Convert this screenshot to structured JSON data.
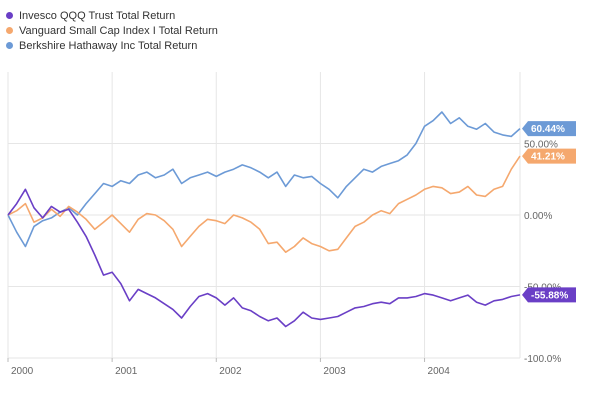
{
  "chart_data": {
    "type": "line",
    "title": "",
    "xlabel": "",
    "ylabel": "",
    "x_start": "2000-01",
    "x_end": "2004-12",
    "ylim": [
      -100,
      100
    ],
    "y_ticks": [
      {
        "value": 50,
        "label": "50.00%"
      },
      {
        "value": 0,
        "label": "0.00%"
      },
      {
        "value": -50,
        "label": "-50.00%"
      },
      {
        "value": -100,
        "label": "-100.0%"
      }
    ],
    "x_ticks": [
      {
        "date": "2000-01",
        "label": "2000"
      },
      {
        "date": "2001-01",
        "label": "2001"
      },
      {
        "date": "2002-01",
        "label": "2002"
      },
      {
        "date": "2003-01",
        "label": "2003"
      },
      {
        "date": "2004-01",
        "label": "2004"
      }
    ],
    "grid": true,
    "legend_position": "top-left",
    "series": [
      {
        "name": "Invesco QQQ Trust Total Return",
        "color": "#6a3fc6",
        "end_label": "-55.88%",
        "points": [
          [
            "2000-01",
            0
          ],
          [
            "2000-02",
            8
          ],
          [
            "2000-03",
            18
          ],
          [
            "2000-04",
            5
          ],
          [
            "2000-05",
            -2
          ],
          [
            "2000-06",
            6
          ],
          [
            "2000-07",
            2
          ],
          [
            "2000-08",
            4
          ],
          [
            "2000-09",
            -5
          ],
          [
            "2000-10",
            -15
          ],
          [
            "2000-11",
            -28
          ],
          [
            "2000-12",
            -42
          ],
          [
            "2001-01",
            -40
          ],
          [
            "2001-02",
            -48
          ],
          [
            "2001-03",
            -60
          ],
          [
            "2001-04",
            -52
          ],
          [
            "2001-05",
            -55
          ],
          [
            "2001-06",
            -58
          ],
          [
            "2001-07",
            -62
          ],
          [
            "2001-08",
            -66
          ],
          [
            "2001-09",
            -72
          ],
          [
            "2001-10",
            -64
          ],
          [
            "2001-11",
            -57
          ],
          [
            "2001-12",
            -55
          ],
          [
            "2002-01",
            -58
          ],
          [
            "2002-02",
            -63
          ],
          [
            "2002-03",
            -58
          ],
          [
            "2002-04",
            -65
          ],
          [
            "2002-05",
            -67
          ],
          [
            "2002-06",
            -71
          ],
          [
            "2002-07",
            -74
          ],
          [
            "2002-08",
            -72
          ],
          [
            "2002-09",
            -78
          ],
          [
            "2002-10",
            -74
          ],
          [
            "2002-11",
            -68
          ],
          [
            "2002-12",
            -72
          ],
          [
            "2003-01",
            -73
          ],
          [
            "2003-02",
            -72
          ],
          [
            "2003-03",
            -71
          ],
          [
            "2003-04",
            -68
          ],
          [
            "2003-05",
            -65
          ],
          [
            "2003-06",
            -64
          ],
          [
            "2003-07",
            -62
          ],
          [
            "2003-08",
            -61
          ],
          [
            "2003-09",
            -62
          ],
          [
            "2003-10",
            -58
          ],
          [
            "2003-11",
            -58
          ],
          [
            "2003-12",
            -57
          ],
          [
            "2004-01",
            -55
          ],
          [
            "2004-02",
            -56
          ],
          [
            "2004-03",
            -58
          ],
          [
            "2004-04",
            -60
          ],
          [
            "2004-05",
            -58
          ],
          [
            "2004-06",
            -56
          ],
          [
            "2004-07",
            -61
          ],
          [
            "2004-08",
            -63
          ],
          [
            "2004-09",
            -60
          ],
          [
            "2004-10",
            -59
          ],
          [
            "2004-11",
            -57
          ],
          [
            "2004-12",
            -55.88
          ]
        ]
      },
      {
        "name": "Vanguard Small Cap Index I Total Return",
        "color": "#f5a86e",
        "end_label": "41.21%",
        "points": [
          [
            "2000-01",
            0
          ],
          [
            "2000-02",
            3
          ],
          [
            "2000-03",
            8
          ],
          [
            "2000-04",
            -5
          ],
          [
            "2000-05",
            -2
          ],
          [
            "2000-06",
            4
          ],
          [
            "2000-07",
            -1
          ],
          [
            "2000-08",
            6
          ],
          [
            "2000-09",
            2
          ],
          [
            "2000-10",
            -3
          ],
          [
            "2000-11",
            -10
          ],
          [
            "2000-12",
            -5
          ],
          [
            "2001-01",
            0
          ],
          [
            "2001-02",
            -6
          ],
          [
            "2001-03",
            -12
          ],
          [
            "2001-04",
            -3
          ],
          [
            "2001-05",
            1
          ],
          [
            "2001-06",
            0
          ],
          [
            "2001-07",
            -4
          ],
          [
            "2001-08",
            -10
          ],
          [
            "2001-09",
            -22
          ],
          [
            "2001-10",
            -15
          ],
          [
            "2001-11",
            -8
          ],
          [
            "2001-12",
            -3
          ],
          [
            "2002-01",
            -4
          ],
          [
            "2002-02",
            -6
          ],
          [
            "2002-03",
            0
          ],
          [
            "2002-04",
            -2
          ],
          [
            "2002-05",
            -5
          ],
          [
            "2002-06",
            -10
          ],
          [
            "2002-07",
            -20
          ],
          [
            "2002-08",
            -19
          ],
          [
            "2002-09",
            -26
          ],
          [
            "2002-10",
            -22
          ],
          [
            "2002-11",
            -16
          ],
          [
            "2002-12",
            -20
          ],
          [
            "2003-01",
            -22
          ],
          [
            "2003-02",
            -25
          ],
          [
            "2003-03",
            -24
          ],
          [
            "2003-04",
            -16
          ],
          [
            "2003-05",
            -8
          ],
          [
            "2003-06",
            -5
          ],
          [
            "2003-07",
            0
          ],
          [
            "2003-08",
            3
          ],
          [
            "2003-09",
            1
          ],
          [
            "2003-10",
            8
          ],
          [
            "2003-11",
            11
          ],
          [
            "2003-12",
            14
          ],
          [
            "2004-01",
            18
          ],
          [
            "2004-02",
            20
          ],
          [
            "2004-03",
            19
          ],
          [
            "2004-04",
            15
          ],
          [
            "2004-05",
            16
          ],
          [
            "2004-06",
            20
          ],
          [
            "2004-07",
            14
          ],
          [
            "2004-08",
            13
          ],
          [
            "2004-09",
            18
          ],
          [
            "2004-10",
            20
          ],
          [
            "2004-11",
            32
          ],
          [
            "2004-12",
            41.21
          ]
        ]
      },
      {
        "name": "Berkshire Hathaway Inc Total Return",
        "color": "#6c9ad6",
        "end_label": "60.44%",
        "points": [
          [
            "2000-01",
            0
          ],
          [
            "2000-02",
            -12
          ],
          [
            "2000-03",
            -22
          ],
          [
            "2000-04",
            -8
          ],
          [
            "2000-05",
            -4
          ],
          [
            "2000-06",
            -2
          ],
          [
            "2000-07",
            2
          ],
          [
            "2000-08",
            5
          ],
          [
            "2000-09",
            0
          ],
          [
            "2000-10",
            8
          ],
          [
            "2000-11",
            15
          ],
          [
            "2000-12",
            22
          ],
          [
            "2001-01",
            20
          ],
          [
            "2001-02",
            24
          ],
          [
            "2001-03",
            22
          ],
          [
            "2001-04",
            28
          ],
          [
            "2001-05",
            30
          ],
          [
            "2001-06",
            26
          ],
          [
            "2001-07",
            28
          ],
          [
            "2001-08",
            32
          ],
          [
            "2001-09",
            22
          ],
          [
            "2001-10",
            26
          ],
          [
            "2001-11",
            28
          ],
          [
            "2001-12",
            30
          ],
          [
            "2002-01",
            27
          ],
          [
            "2002-02",
            30
          ],
          [
            "2002-03",
            32
          ],
          [
            "2002-04",
            35
          ],
          [
            "2002-05",
            33
          ],
          [
            "2002-06",
            30
          ],
          [
            "2002-07",
            26
          ],
          [
            "2002-08",
            30
          ],
          [
            "2002-09",
            20
          ],
          [
            "2002-10",
            28
          ],
          [
            "2002-11",
            26
          ],
          [
            "2002-12",
            27
          ],
          [
            "2003-01",
            22
          ],
          [
            "2003-02",
            18
          ],
          [
            "2003-03",
            12
          ],
          [
            "2003-04",
            20
          ],
          [
            "2003-05",
            26
          ],
          [
            "2003-06",
            32
          ],
          [
            "2003-07",
            30
          ],
          [
            "2003-08",
            34
          ],
          [
            "2003-09",
            36
          ],
          [
            "2003-10",
            38
          ],
          [
            "2003-11",
            42
          ],
          [
            "2003-12",
            50
          ],
          [
            "2004-01",
            62
          ],
          [
            "2004-02",
            66
          ],
          [
            "2004-03",
            72
          ],
          [
            "2004-04",
            64
          ],
          [
            "2004-05",
            68
          ],
          [
            "2004-06",
            62
          ],
          [
            "2004-07",
            60
          ],
          [
            "2004-08",
            64
          ],
          [
            "2004-09",
            58
          ],
          [
            "2004-10",
            56
          ],
          [
            "2004-11",
            55
          ],
          [
            "2004-12",
            60.44
          ]
        ]
      }
    ]
  }
}
